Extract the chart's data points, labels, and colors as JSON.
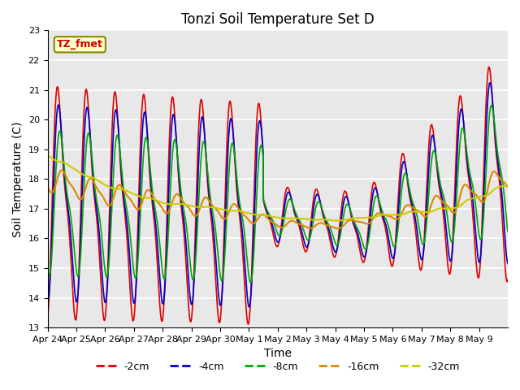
{
  "title": "Tonzi Soil Temperature Set D",
  "xlabel": "Time",
  "ylabel": "Soil Temperature (C)",
  "ylim": [
    13.0,
    23.0
  ],
  "yticks": [
    13.0,
    14.0,
    15.0,
    16.0,
    17.0,
    18.0,
    19.0,
    20.0,
    21.0,
    22.0,
    23.0
  ],
  "xtick_labels": [
    "Apr 24",
    "Apr 25",
    "Apr 26",
    "Apr 27",
    "Apr 28",
    "Apr 29",
    "Apr 30",
    "May 1",
    "May 2",
    "May 3",
    "May 4",
    "May 5",
    "May 6",
    "May 7",
    "May 8",
    "May 9"
  ],
  "colors": {
    "-2cm": "#dd0000",
    "-4cm": "#0000cc",
    "-8cm": "#00aa00",
    "-16cm": "#dd8800",
    "-32cm": "#cccc00"
  },
  "legend_labels": [
    "-2cm",
    "-4cm",
    "-8cm",
    "-16cm",
    "-32cm"
  ],
  "bg_color": "#e8e8e8",
  "annotation_text": "TZ_fmet",
  "annotation_bg": "#ffffcc",
  "annotation_border": "#888800",
  "annotation_text_color": "#cc0000"
}
